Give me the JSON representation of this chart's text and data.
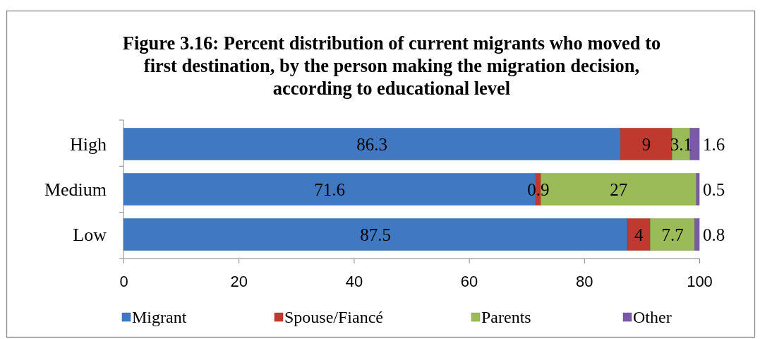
{
  "chart_data": {
    "type": "bar",
    "orientation": "horizontal",
    "stacked": true,
    "title": "Figure 3.16: Percent distribution of current migrants who moved to first destination, by the person making the migration decision, according to educational level",
    "categories": [
      "High",
      "Medium",
      "Low"
    ],
    "series": [
      {
        "name": "Migrant",
        "color": "#4079c2",
        "values": [
          86.3,
          71.6,
          87.5
        ]
      },
      {
        "name": "Spouse/Fiancé",
        "color": "#c0392f",
        "values": [
          9,
          0.9,
          4
        ]
      },
      {
        "name": "Parents",
        "color": "#9bbb59",
        "values": [
          3.1,
          27,
          7.7
        ]
      },
      {
        "name": "Other",
        "color": "#7a5aa6",
        "values": [
          1.6,
          0.5,
          0.8
        ]
      }
    ],
    "xlim": [
      0,
      100
    ],
    "xticks": [
      0,
      20,
      40,
      60,
      80,
      100
    ],
    "data_labels": true,
    "grid": false,
    "legend": "bottom"
  }
}
